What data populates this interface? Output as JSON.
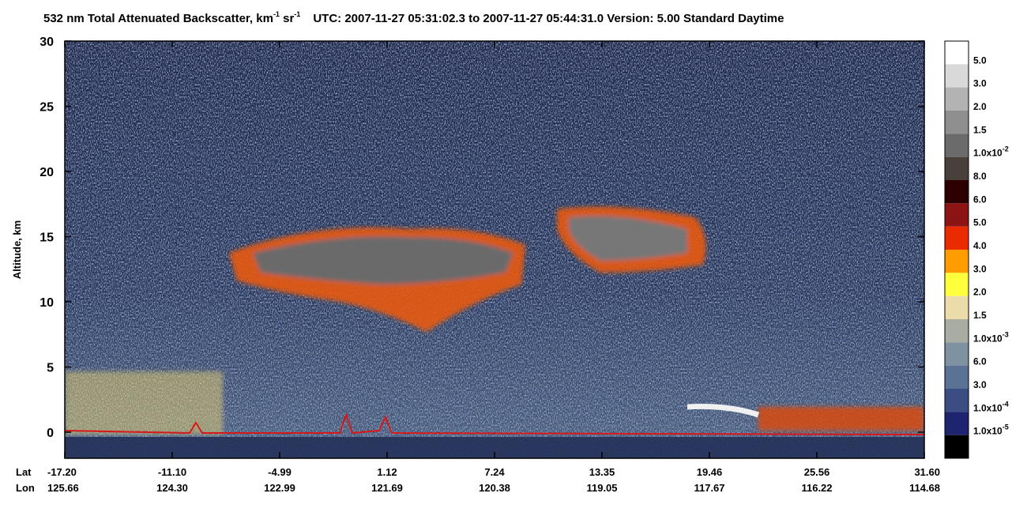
{
  "chart_data": {
    "type": "heatmap",
    "title": {
      "main": "532 nm Total Attenuated Backscatter, km",
      "exp1": "-1",
      "unit2": " sr",
      "exp2": "-1",
      "info": "UTC:  2007-11-27 05:31:02.3  to  2007-11-27 05:44:31.0    Version: 5.00  Standard  Daytime"
    },
    "ylabel": "Altitude, km",
    "ylim": [
      -2,
      30
    ],
    "yticks": [
      0,
      5,
      10,
      15,
      20,
      25,
      30
    ],
    "x_row_names": [
      "Lat",
      "Lon"
    ],
    "lat": [
      "-17.20",
      "-11.10",
      "-4.99",
      "1.12",
      "7.24",
      "13.35",
      "19.46",
      "25.56",
      "31.60"
    ],
    "lon": [
      "125.66",
      "124.30",
      "122.99",
      "121.69",
      "120.38",
      "119.05",
      "117.67",
      "116.22",
      "114.68"
    ],
    "colorbar": {
      "colors": [
        "#ffffff",
        "#d9d9d9",
        "#b3b3b3",
        "#8f8f8f",
        "#6b6b6b",
        "#4a403a",
        "#2c0000",
        "#8c1414",
        "#ea2a00",
        "#ff9c00",
        "#ffff3c",
        "#ecdcaa",
        "#a9aca0",
        "#7e92a2",
        "#5a7294",
        "#3a4e84",
        "#1e2470",
        "#000000"
      ],
      "labels": [
        {
          "text": "5.0"
        },
        {
          "text": "3.0"
        },
        {
          "text": "2.0"
        },
        {
          "text": "1.5"
        },
        {
          "text": "1.0x10",
          "exp": "-2"
        },
        {
          "text": "8.0"
        },
        {
          "text": "6.0"
        },
        {
          "text": "5.0"
        },
        {
          "text": "4.0"
        },
        {
          "text": "3.0"
        },
        {
          "text": "2.0"
        },
        {
          "text": "1.5"
        },
        {
          "text": "1.0x10",
          "exp": "-3"
        },
        {
          "text": "6.0"
        },
        {
          "text": "3.0"
        },
        {
          "text": "1.0x10",
          "exp": "-4"
        },
        {
          "text": "1.0x10",
          "exp": "-5"
        }
      ]
    }
  }
}
